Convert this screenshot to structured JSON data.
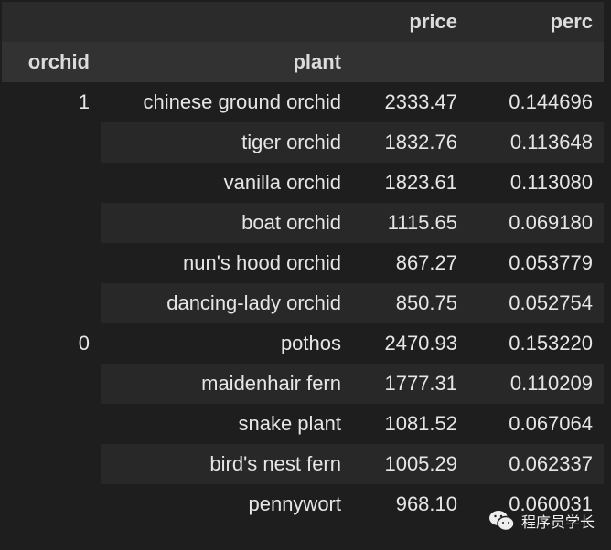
{
  "columns": {
    "price": "price",
    "perc": "perc"
  },
  "index_names": {
    "orchid": "orchid",
    "plant": "plant"
  },
  "rows": [
    {
      "orchid": "1",
      "plant": "chinese ground orchid",
      "price": "2333.47",
      "perc": "0.144696"
    },
    {
      "orchid": "",
      "plant": "tiger orchid",
      "price": "1832.76",
      "perc": "0.113648"
    },
    {
      "orchid": "",
      "plant": "vanilla orchid",
      "price": "1823.61",
      "perc": "0.113080"
    },
    {
      "orchid": "",
      "plant": "boat orchid",
      "price": "1115.65",
      "perc": "0.069180"
    },
    {
      "orchid": "",
      "plant": "nun's hood orchid",
      "price": "867.27",
      "perc": "0.053779"
    },
    {
      "orchid": "",
      "plant": "dancing-lady orchid",
      "price": "850.75",
      "perc": "0.052754"
    },
    {
      "orchid": "0",
      "plant": "pothos",
      "price": "2470.93",
      "perc": "0.153220"
    },
    {
      "orchid": "",
      "plant": "maidenhair fern",
      "price": "1777.31",
      "perc": "0.110209"
    },
    {
      "orchid": "",
      "plant": "snake plant",
      "price": "1081.52",
      "perc": "0.067064"
    },
    {
      "orchid": "",
      "plant": "bird's nest fern",
      "price": "1005.29",
      "perc": "0.062337"
    },
    {
      "orchid": "",
      "plant": "pennywort",
      "price": "968.10",
      "perc": "0.060031"
    }
  ],
  "watermark": {
    "text": "程序员学长",
    "icon": "wechat-icon"
  }
}
